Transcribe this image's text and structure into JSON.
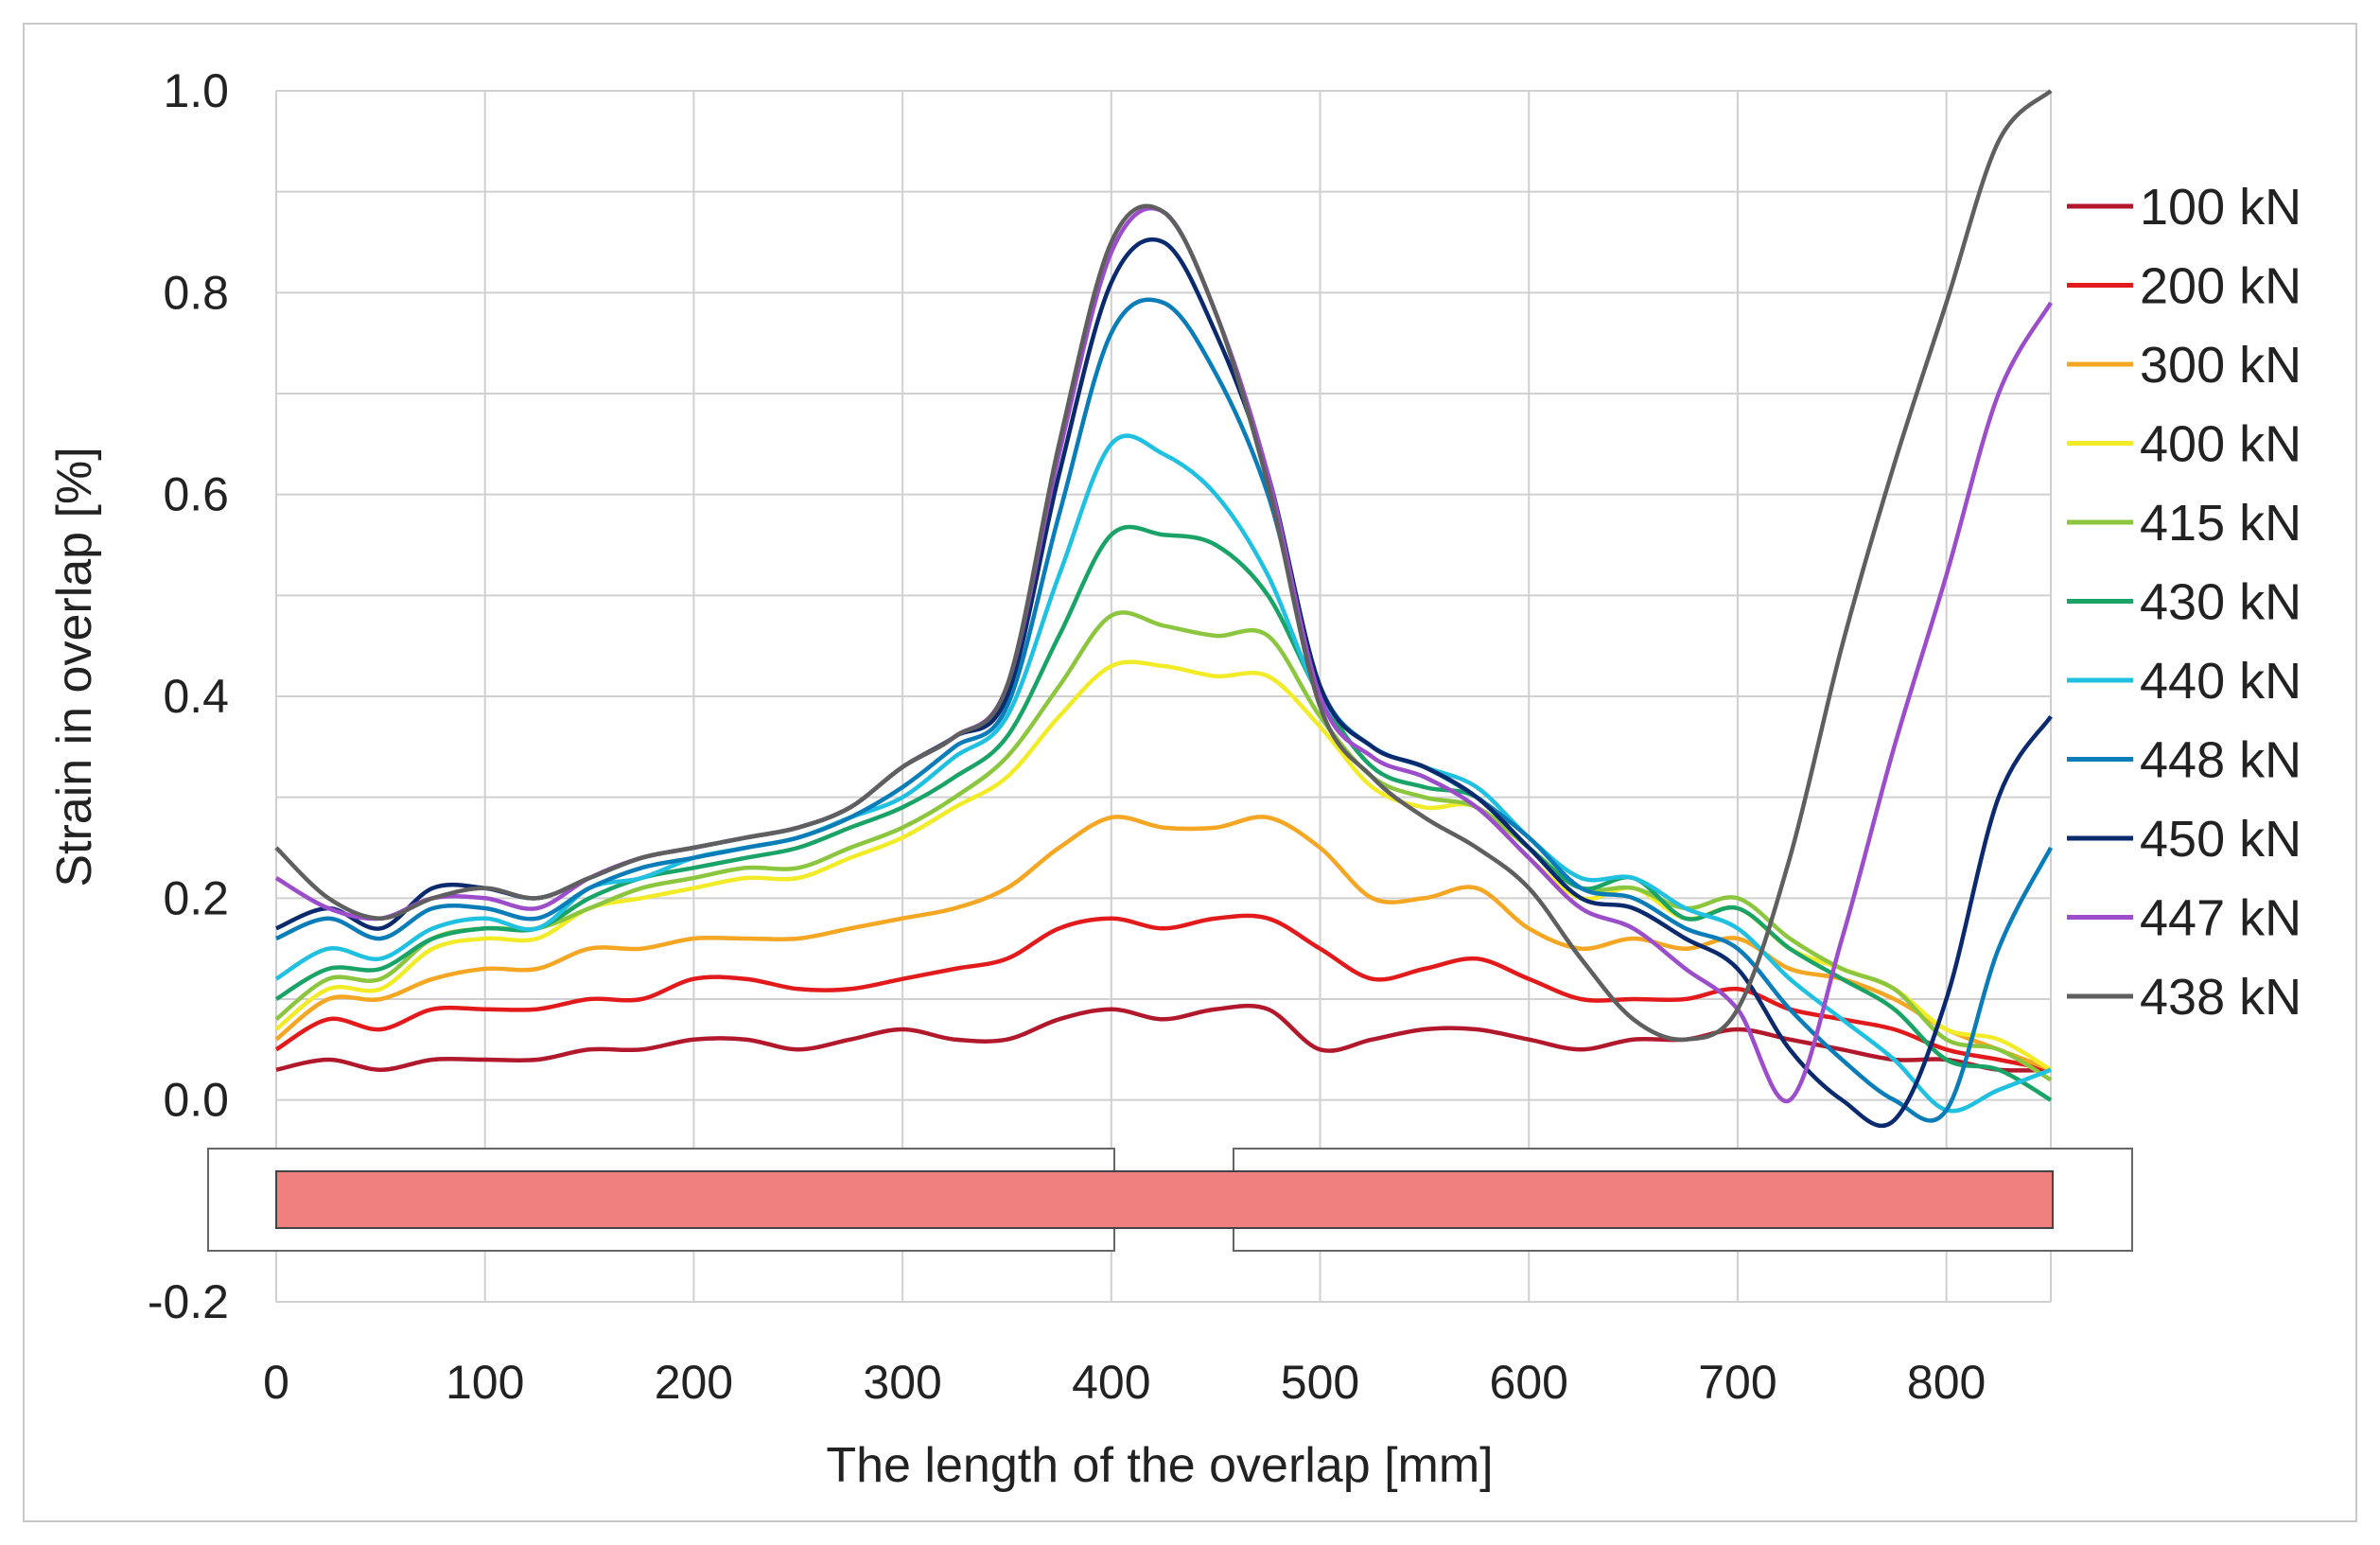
{
  "chart_data": {
    "type": "line",
    "title": "",
    "xlabel": "The length of the overlap [mm]",
    "ylabel": "Strain in overlap [%]",
    "xlim": [
      0,
      850
    ],
    "ylim": [
      -0.2,
      1.0
    ],
    "x_ticks": [
      0,
      100,
      200,
      300,
      400,
      500,
      600,
      700,
      800
    ],
    "x_tick_labels": [
      "0",
      "100",
      "200",
      "300",
      "400",
      "500",
      "600",
      "700",
      "800"
    ],
    "y_ticks": [
      -0.2,
      0.0,
      0.2,
      0.4,
      0.6,
      0.8,
      1.0
    ],
    "y_tick_labels": [
      "-0.2",
      "0.0",
      "0.2",
      "0.4",
      "0.6",
      "0.8",
      "1.0"
    ],
    "grid": true,
    "legend_position": "right",
    "x": [
      0,
      25,
      50,
      75,
      100,
      125,
      150,
      175,
      200,
      225,
      250,
      275,
      300,
      325,
      350,
      375,
      400,
      425,
      450,
      475,
      500,
      525,
      550,
      575,
      600,
      625,
      650,
      675,
      700,
      725,
      750,
      775,
      800,
      825,
      850
    ],
    "series": [
      {
        "name": "100 kN",
        "color": "#b2182b",
        "values": [
          0.03,
          0.04,
          0.03,
          0.04,
          0.04,
          0.04,
          0.05,
          0.05,
          0.06,
          0.06,
          0.05,
          0.06,
          0.07,
          0.06,
          0.06,
          0.08,
          0.09,
          0.08,
          0.09,
          0.09,
          0.05,
          0.06,
          0.07,
          0.07,
          0.06,
          0.05,
          0.06,
          0.06,
          0.07,
          0.06,
          0.05,
          0.04,
          0.04,
          0.03,
          0.03
        ]
      },
      {
        "name": "200 kN",
        "color": "#e31a1c",
        "values": [
          0.05,
          0.08,
          0.07,
          0.09,
          0.09,
          0.09,
          0.1,
          0.1,
          0.12,
          0.12,
          0.11,
          0.11,
          0.12,
          0.13,
          0.14,
          0.17,
          0.18,
          0.17,
          0.18,
          0.18,
          0.15,
          0.12,
          0.13,
          0.14,
          0.12,
          0.1,
          0.1,
          0.1,
          0.11,
          0.09,
          0.08,
          0.07,
          0.05,
          0.04,
          0.03
        ]
      },
      {
        "name": "300 kN",
        "color": "#f5a623",
        "values": [
          0.06,
          0.1,
          0.1,
          0.12,
          0.13,
          0.13,
          0.15,
          0.15,
          0.16,
          0.16,
          0.16,
          0.17,
          0.18,
          0.19,
          0.21,
          0.25,
          0.28,
          0.27,
          0.27,
          0.28,
          0.25,
          0.2,
          0.2,
          0.21,
          0.17,
          0.15,
          0.16,
          0.15,
          0.16,
          0.13,
          0.12,
          0.1,
          0.07,
          0.05,
          0.03
        ]
      },
      {
        "name": "400 kN",
        "color": "#f2ec28",
        "values": [
          0.07,
          0.11,
          0.11,
          0.15,
          0.16,
          0.16,
          0.19,
          0.2,
          0.21,
          0.22,
          0.22,
          0.24,
          0.26,
          0.29,
          0.32,
          0.38,
          0.43,
          0.43,
          0.42,
          0.42,
          0.37,
          0.31,
          0.29,
          0.29,
          0.24,
          0.2,
          0.21,
          0.18,
          0.19,
          0.15,
          0.13,
          0.11,
          0.07,
          0.06,
          0.03
        ]
      },
      {
        "name": "415 kN",
        "color": "#8cc63f",
        "values": [
          0.08,
          0.12,
          0.12,
          0.16,
          0.17,
          0.17,
          0.19,
          0.21,
          0.22,
          0.23,
          0.23,
          0.25,
          0.27,
          0.3,
          0.34,
          0.41,
          0.48,
          0.47,
          0.46,
          0.46,
          0.38,
          0.32,
          0.3,
          0.29,
          0.25,
          0.21,
          0.21,
          0.19,
          0.2,
          0.16,
          0.13,
          0.11,
          0.06,
          0.05,
          0.02
        ]
      },
      {
        "name": "430 kN",
        "color": "#1aa366",
        "values": [
          0.1,
          0.13,
          0.13,
          0.16,
          0.17,
          0.17,
          0.2,
          0.22,
          0.23,
          0.24,
          0.25,
          0.27,
          0.29,
          0.32,
          0.36,
          0.46,
          0.56,
          0.56,
          0.55,
          0.5,
          0.4,
          0.33,
          0.31,
          0.3,
          0.25,
          0.21,
          0.22,
          0.18,
          0.19,
          0.15,
          0.12,
          0.09,
          0.04,
          0.03,
          0.0
        ]
      },
      {
        "name": "440 kN",
        "color": "#1fc0e0",
        "values": [
          0.12,
          0.15,
          0.14,
          0.17,
          0.18,
          0.17,
          0.21,
          0.22,
          0.24,
          0.25,
          0.26,
          0.28,
          0.3,
          0.34,
          0.38,
          0.52,
          0.65,
          0.64,
          0.6,
          0.52,
          0.4,
          0.35,
          0.33,
          0.31,
          0.26,
          0.22,
          0.22,
          0.19,
          0.17,
          0.12,
          0.08,
          0.04,
          -0.01,
          0.01,
          0.03
        ]
      },
      {
        "name": "448 kN",
        "color": "#0a7db8",
        "values": [
          0.16,
          0.18,
          0.16,
          0.19,
          0.19,
          0.18,
          0.21,
          0.23,
          0.24,
          0.25,
          0.26,
          0.28,
          0.31,
          0.35,
          0.39,
          0.58,
          0.76,
          0.79,
          0.72,
          0.6,
          0.41,
          0.35,
          0.33,
          0.3,
          0.26,
          0.21,
          0.2,
          0.17,
          0.15,
          0.09,
          0.04,
          0.0,
          -0.01,
          0.15,
          0.25
        ]
      },
      {
        "name": "450 kN",
        "color": "#0b2a6e",
        "values": [
          0.17,
          0.19,
          0.17,
          0.21,
          0.21,
          0.2,
          0.22,
          0.24,
          0.25,
          0.26,
          0.27,
          0.29,
          0.33,
          0.36,
          0.4,
          0.62,
          0.81,
          0.85,
          0.76,
          0.62,
          0.41,
          0.35,
          0.33,
          0.3,
          0.25,
          0.2,
          0.19,
          0.16,
          0.13,
          0.05,
          0.0,
          -0.02,
          0.1,
          0.3,
          0.38
        ]
      },
      {
        "name": "447 kN",
        "color": "#9b4dca",
        "values": [
          0.22,
          0.19,
          0.18,
          0.2,
          0.2,
          0.19,
          0.22,
          0.24,
          0.25,
          0.26,
          0.27,
          0.29,
          0.33,
          0.36,
          0.41,
          0.64,
          0.84,
          0.88,
          0.78,
          0.62,
          0.4,
          0.34,
          0.32,
          0.29,
          0.24,
          0.19,
          0.17,
          0.13,
          0.09,
          0.0,
          0.16,
          0.35,
          0.52,
          0.7,
          0.79
        ]
      },
      {
        "name": "438 kN",
        "color": "#5f5f5f",
        "values": [
          0.25,
          0.2,
          0.18,
          0.2,
          0.21,
          0.2,
          0.22,
          0.24,
          0.25,
          0.26,
          0.27,
          0.29,
          0.33,
          0.36,
          0.41,
          0.65,
          0.85,
          0.88,
          0.78,
          0.61,
          0.39,
          0.32,
          0.28,
          0.25,
          0.21,
          0.14,
          0.08,
          0.06,
          0.09,
          0.24,
          0.45,
          0.63,
          0.79,
          0.95,
          1.0
        ]
      }
    ],
    "annotations": {
      "joint_diagram": "two outer boxes with a gap near 400-460 mm and a filled red strip along the overlap",
      "strip_color": "#f08080"
    }
  }
}
